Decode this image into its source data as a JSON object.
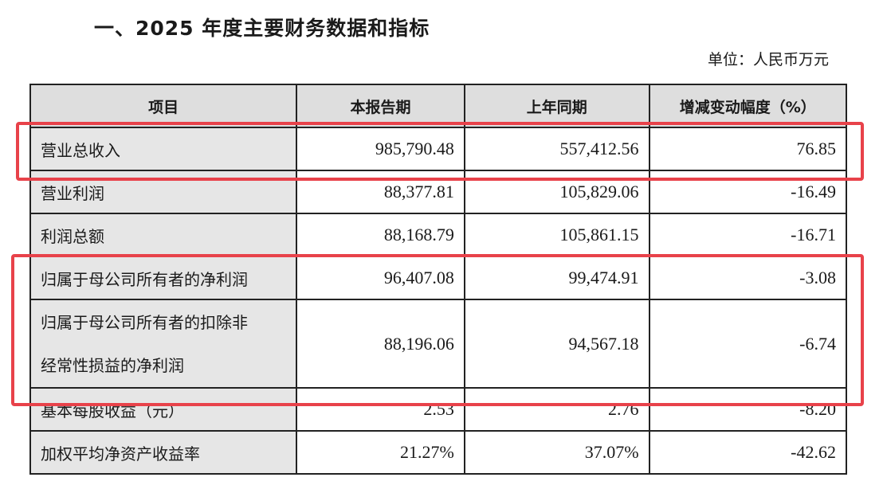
{
  "title": "一、2025 年度主要财务数据和指标",
  "unit": "单位：人民币万元",
  "columns": [
    "项目",
    "本报告期",
    "上年同期",
    "增减变动幅度（%）"
  ],
  "rows": [
    {
      "item": "营业总收入",
      "current": "985,790.48",
      "previous": "557,412.56",
      "change": "76.85",
      "highlighted": true
    },
    {
      "item": "营业利润",
      "current": "88,377.81",
      "previous": "105,829.06",
      "change": "-16.49",
      "highlighted": false
    },
    {
      "item": "利润总额",
      "current": "88,168.79",
      "previous": "105,861.15",
      "change": "-16.71",
      "highlighted": false
    },
    {
      "item": "归属于母公司所有者的净利润",
      "current": "96,407.08",
      "previous": "99,474.91",
      "change": "-3.08",
      "highlighted": true
    },
    {
      "item": "归属于母公司所有者的扣除非经常性损益的净利润",
      "item_lines": [
        "归属于母公司所有者的扣除非",
        "经常性损益的净利润"
      ],
      "current": "88,196.06",
      "previous": "94,567.18",
      "change": "-6.74",
      "highlighted": true
    },
    {
      "item": "基本每股收益（元）",
      "current": "2.53",
      "previous": "2.76",
      "change": "-8.20",
      "highlighted": false
    },
    {
      "item": "加权平均净资产收益率",
      "current": "21.27%",
      "previous": "37.07%",
      "change": "-42.62",
      "highlighted": false
    }
  ],
  "colors": {
    "highlight": "#e8424a",
    "header_bg": "#dedede",
    "label_bg": "#e6e6e6"
  }
}
